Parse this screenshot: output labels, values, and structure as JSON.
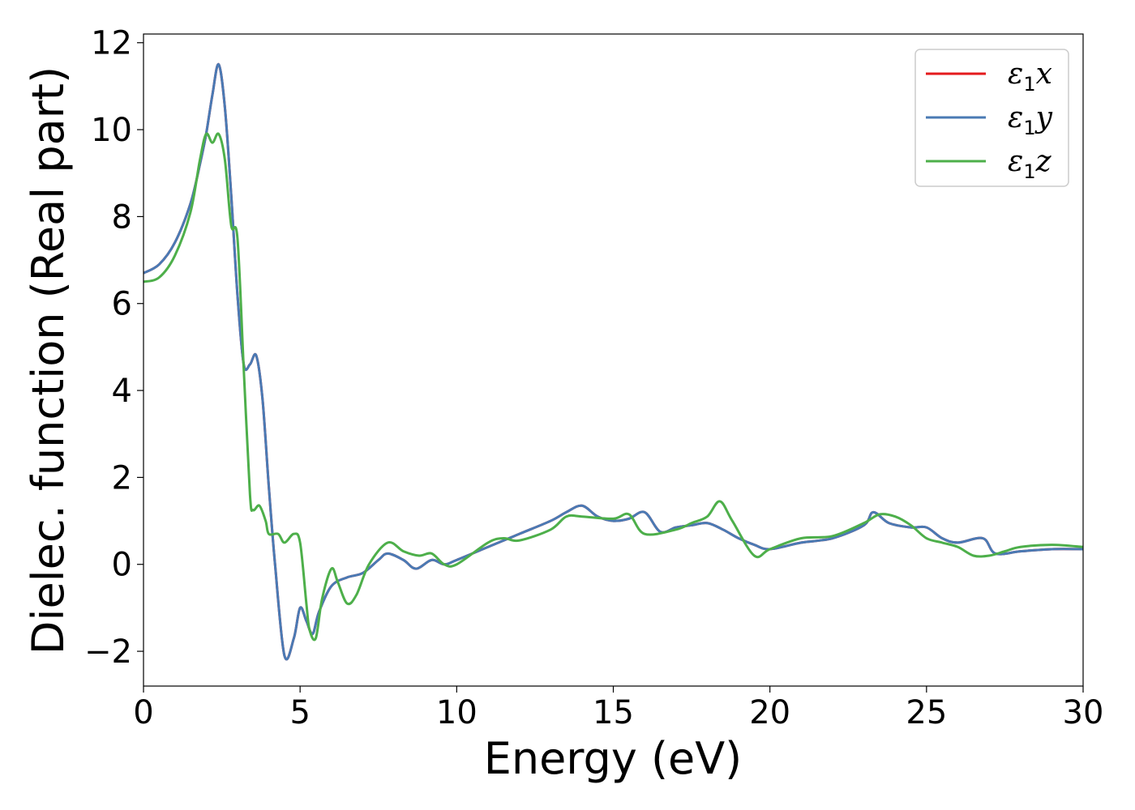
{
  "chart_data": {
    "type": "line",
    "title": "",
    "xlabel": "Energy (eV)",
    "ylabel": "Dielec. function (Real part)",
    "xlim": [
      0,
      30
    ],
    "ylim": [
      -2.8,
      12.2
    ],
    "xticks": [
      0,
      5,
      10,
      15,
      20,
      25,
      30
    ],
    "xtick_labels": [
      "0",
      "5",
      "10",
      "15",
      "20",
      "25",
      "30"
    ],
    "yticks": [
      -2,
      0,
      2,
      4,
      6,
      8,
      10,
      12
    ],
    "ytick_labels": [
      "−2",
      "0",
      "2",
      "4",
      "6",
      "8",
      "10",
      "12"
    ],
    "grid": false,
    "legend_position": "top-right",
    "series": [
      {
        "name": "ε₁x",
        "legend_base": "ε",
        "legend_sub": "1",
        "legend_var": "x",
        "color": "#e41a1c",
        "x": [
          0,
          0.5,
          1.0,
          1.5,
          1.8,
          2.0,
          2.2,
          2.4,
          2.6,
          2.8,
          3.0,
          3.2,
          3.4,
          3.6,
          3.8,
          4.0,
          4.2,
          4.5,
          4.8,
          5.0,
          5.2,
          5.4,
          5.6,
          6.0,
          6.5,
          7.0,
          7.5,
          7.8,
          8.3,
          8.7,
          9.2,
          9.6,
          10.0,
          11.0,
          12.0,
          13.0,
          13.5,
          14.0,
          14.5,
          15.0,
          15.5,
          16.0,
          16.5,
          17.0,
          17.5,
          18.0,
          18.5,
          19.0,
          19.5,
          20.0,
          21.0,
          22.0,
          23.0,
          23.3,
          23.8,
          24.5,
          25.0,
          25.5,
          26.0,
          26.8,
          27.2,
          28.0,
          29.0,
          30.0
        ],
        "y": [
          6.7,
          6.9,
          7.4,
          8.3,
          9.2,
          9.9,
          10.8,
          11.5,
          10.5,
          8.5,
          6.2,
          4.6,
          4.6,
          4.8,
          3.8,
          1.8,
          0.0,
          -2.1,
          -1.7,
          -1.0,
          -1.3,
          -1.6,
          -1.1,
          -0.5,
          -0.3,
          -0.2,
          0.1,
          0.25,
          0.1,
          -0.1,
          0.1,
          0.0,
          0.1,
          0.4,
          0.7,
          1.0,
          1.2,
          1.35,
          1.1,
          1.0,
          1.05,
          1.2,
          0.75,
          0.85,
          0.9,
          0.95,
          0.8,
          0.6,
          0.45,
          0.35,
          0.5,
          0.6,
          0.9,
          1.2,
          0.95,
          0.85,
          0.85,
          0.6,
          0.5,
          0.6,
          0.25,
          0.3,
          0.35,
          0.35
        ]
      },
      {
        "name": "ε₁y",
        "legend_base": "ε",
        "legend_sub": "1",
        "legend_var": "y",
        "color": "#4a7ab4",
        "x": [
          0,
          0.5,
          1.0,
          1.5,
          1.8,
          2.0,
          2.2,
          2.4,
          2.6,
          2.8,
          3.0,
          3.2,
          3.4,
          3.6,
          3.8,
          4.0,
          4.2,
          4.5,
          4.8,
          5.0,
          5.2,
          5.4,
          5.6,
          6.0,
          6.5,
          7.0,
          7.5,
          7.8,
          8.3,
          8.7,
          9.2,
          9.6,
          10.0,
          11.0,
          12.0,
          13.0,
          13.5,
          14.0,
          14.5,
          15.0,
          15.5,
          16.0,
          16.5,
          17.0,
          17.5,
          18.0,
          18.5,
          19.0,
          19.5,
          20.0,
          21.0,
          22.0,
          23.0,
          23.3,
          23.8,
          24.5,
          25.0,
          25.5,
          26.0,
          26.8,
          27.2,
          28.0,
          29.0,
          30.0
        ],
        "y": [
          6.7,
          6.9,
          7.4,
          8.3,
          9.2,
          9.9,
          10.8,
          11.5,
          10.5,
          8.5,
          6.2,
          4.6,
          4.6,
          4.8,
          3.8,
          1.8,
          0.0,
          -2.1,
          -1.7,
          -1.0,
          -1.3,
          -1.6,
          -1.1,
          -0.5,
          -0.3,
          -0.2,
          0.1,
          0.25,
          0.1,
          -0.1,
          0.1,
          0.0,
          0.1,
          0.4,
          0.7,
          1.0,
          1.2,
          1.35,
          1.1,
          1.0,
          1.05,
          1.2,
          0.75,
          0.85,
          0.9,
          0.95,
          0.8,
          0.6,
          0.45,
          0.35,
          0.5,
          0.6,
          0.9,
          1.2,
          0.95,
          0.85,
          0.85,
          0.6,
          0.5,
          0.6,
          0.25,
          0.3,
          0.35,
          0.35
        ]
      },
      {
        "name": "ε₁z",
        "legend_base": "ε",
        "legend_sub": "1",
        "legend_var": "z",
        "color": "#4daf4a",
        "x": [
          0,
          0.5,
          1.0,
          1.5,
          1.8,
          2.0,
          2.2,
          2.4,
          2.6,
          2.8,
          3.0,
          3.2,
          3.4,
          3.5,
          3.7,
          3.9,
          4.0,
          4.3,
          4.5,
          4.8,
          5.0,
          5.2,
          5.3,
          5.5,
          5.7,
          6.0,
          6.2,
          6.5,
          6.8,
          7.2,
          7.8,
          8.3,
          8.8,
          9.2,
          9.6,
          10.0,
          11.0,
          11.5,
          12.0,
          13.0,
          13.5,
          14.0,
          15.0,
          15.5,
          16.0,
          17.0,
          17.5,
          18.0,
          18.4,
          18.8,
          19.5,
          20.0,
          21.0,
          22.0,
          23.0,
          23.5,
          24.0,
          24.5,
          25.0,
          25.5,
          26.0,
          26.5,
          27.0,
          27.5,
          28.0,
          29.0,
          30.0
        ],
        "y": [
          6.5,
          6.6,
          7.1,
          8.1,
          9.3,
          9.9,
          9.7,
          9.9,
          9.3,
          7.8,
          7.5,
          4.5,
          1.6,
          1.25,
          1.35,
          1.0,
          0.7,
          0.7,
          0.5,
          0.7,
          0.5,
          -0.9,
          -1.5,
          -1.7,
          -0.8,
          -0.1,
          -0.4,
          -0.9,
          -0.7,
          0.0,
          0.5,
          0.3,
          0.2,
          0.25,
          0.0,
          0.0,
          0.5,
          0.6,
          0.55,
          0.8,
          1.1,
          1.1,
          1.05,
          1.15,
          0.7,
          0.8,
          0.95,
          1.1,
          1.45,
          1.0,
          0.2,
          0.35,
          0.6,
          0.65,
          0.95,
          1.15,
          1.1,
          0.9,
          0.6,
          0.5,
          0.4,
          0.2,
          0.2,
          0.3,
          0.4,
          0.45,
          0.4
        ]
      }
    ]
  }
}
